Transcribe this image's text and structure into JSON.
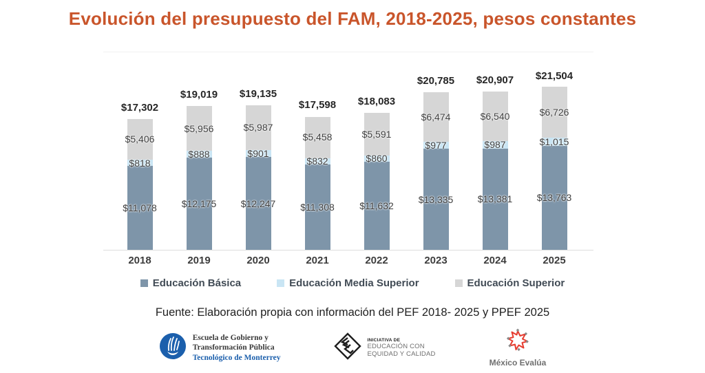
{
  "title": "Evolución del presupuesto del FAM, 2018-2025, pesos constantes",
  "title_color": "#c9552b",
  "chart_data": {
    "type": "bar",
    "stacked": true,
    "title": "Evolución del presupuesto del FAM, 2018-2025, pesos constantes",
    "categories": [
      "2018",
      "2019",
      "2020",
      "2021",
      "2022",
      "2023",
      "2024",
      "2025"
    ],
    "series": [
      {
        "name": "Educación Básica",
        "color": "#7e95a9",
        "values": [
          11078,
          12175,
          12247,
          11308,
          11632,
          13335,
          13381,
          13763
        ]
      },
      {
        "name": "Educación Media Superior",
        "color": "#c9e5f4",
        "values": [
          818,
          888,
          901,
          832,
          860,
          977,
          987,
          1015
        ]
      },
      {
        "name": "Educación Superior",
        "color": "#d6d6d6",
        "values": [
          5406,
          5956,
          5987,
          5458,
          5591,
          6474,
          6540,
          6726
        ]
      }
    ],
    "totals": [
      17302,
      19019,
      19135,
      17598,
      18083,
      20785,
      20907,
      21504
    ],
    "value_prefix": "$",
    "xlabel": "",
    "ylabel": "",
    "ylim": [
      0,
      22000
    ],
    "grid": false,
    "legend_position": "bottom"
  },
  "source": "Fuente: Elaboración propia con información del PEF 2018- 2025 y PPEF 2025",
  "logos": {
    "tec": {
      "line1": "Escuela de Gobierno y",
      "line2": "Transformación Pública",
      "line3": "Tecnológico de Monterrey",
      "accent_color": "#1b5fac"
    },
    "eec": {
      "line1": "INICIATIVA DE",
      "line2": "EDUCACIÓN CON",
      "line3": "EQUIDAD Y CALIDAD"
    },
    "mexico_evalua": {
      "label": "México Evalúa",
      "star_color": "#e63c2f"
    }
  }
}
